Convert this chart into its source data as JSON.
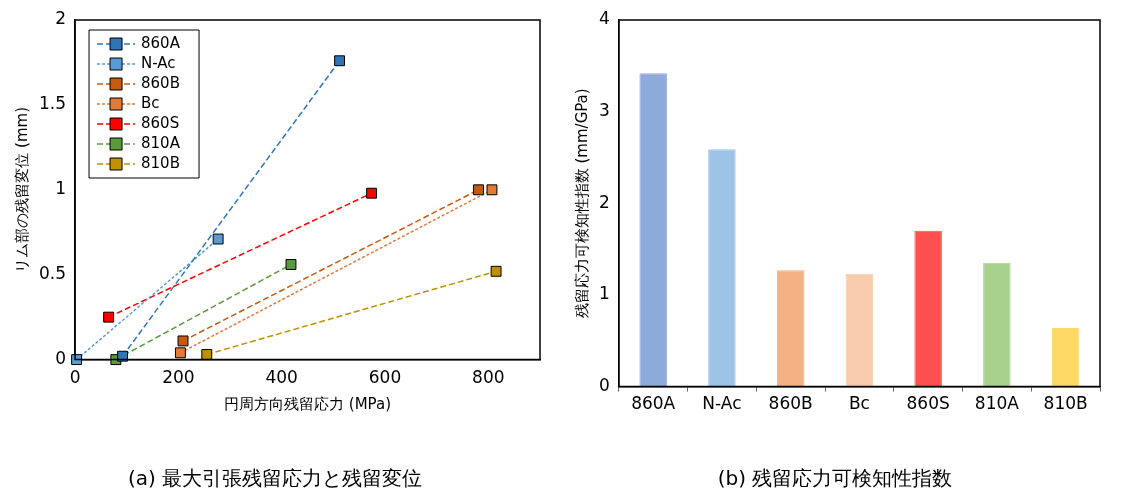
{
  "chart_data": [
    {
      "type": "line",
      "title": "(a) 最大引張残留応力と残留変位",
      "xlabel": "円周方向残留応力 (MPa)",
      "ylabel": "リム部の残留変位 (mm)",
      "xlim": [
        0,
        900
      ],
      "xticks": [
        0,
        200,
        400,
        600,
        800
      ],
      "ylim": [
        0,
        2
      ],
      "yticks": [
        0,
        0.5,
        1,
        1.5,
        2
      ],
      "grid": false,
      "legend": "top left",
      "marker": "square",
      "series": [
        {
          "name": "860A",
          "color": "#2e75b6",
          "line_style": "dashed",
          "x": [
            92,
            512
          ],
          "values": [
            0.02,
            1.76
          ]
        },
        {
          "name": "N-Ac",
          "color": "#5b9bd5",
          "line_style": "dotted",
          "x": [
            3,
            277
          ],
          "values": [
            0,
            0.71
          ]
        },
        {
          "name": "860B",
          "color": "#c55a11",
          "line_style": "dashed",
          "x": [
            209,
            781
          ],
          "values": [
            0.11,
            1.0
          ]
        },
        {
          "name": "Bc",
          "color": "#e07b39",
          "line_style": "dotted",
          "x": [
            204,
            807
          ],
          "values": [
            0.04,
            1.0
          ]
        },
        {
          "name": "860S",
          "color": "#ff0000",
          "line_style": "dashed",
          "x": [
            65,
            574
          ],
          "values": [
            0.25,
            0.98
          ]
        },
        {
          "name": "810A",
          "color": "#5b9a3c",
          "line_style": "dashed",
          "x": [
            79,
            418
          ],
          "values": [
            0,
            0.56
          ]
        },
        {
          "name": "810B",
          "color": "#bf9000",
          "line_style": "dashed",
          "x": [
            255,
            815
          ],
          "values": [
            0.03,
            0.52
          ]
        }
      ]
    },
    {
      "type": "bar",
      "title": "(b) 残留応力可検知性指数",
      "ylabel": "残留応力可検知性指数 (mm/GPa)",
      "ylim": [
        0,
        4
      ],
      "yticks": [
        0,
        1,
        2,
        3,
        4
      ],
      "grid": false,
      "categories": [
        "860A",
        "N-Ac",
        "860B",
        "Bc",
        "860S",
        "810A",
        "810B"
      ],
      "values": [
        3.42,
        2.59,
        1.27,
        1.23,
        1.7,
        1.35,
        0.64
      ],
      "colors": [
        "#8eaadb",
        "#9dc3e6",
        "#f4b183",
        "#f8cbad",
        "#ff5050",
        "#a9d18e",
        "#ffd966"
      ]
    }
  ]
}
